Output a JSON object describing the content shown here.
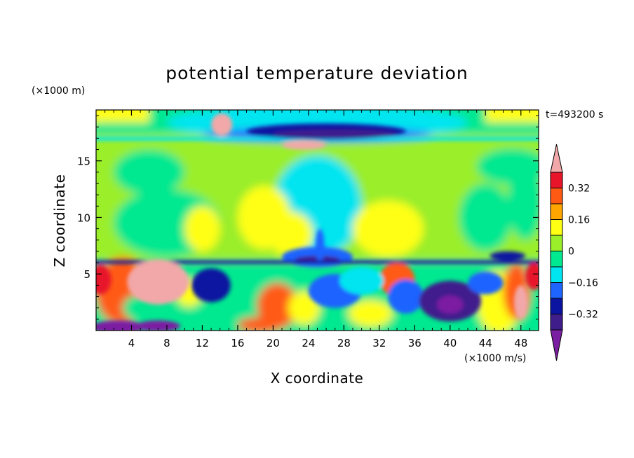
{
  "chart_data": {
    "type": "heatmap",
    "title": "potential temperature deviation",
    "xlabel": "X coordinate",
    "ylabel": "Z coordinate",
    "x_unit": "(×1000 m/s)",
    "y_unit": "(×1000 m)",
    "time_label": "t=493200 s",
    "xlim": [
      0,
      50
    ],
    "ylim": [
      0,
      19.5
    ],
    "x_ticks": [
      4,
      8,
      12,
      16,
      20,
      24,
      28,
      32,
      36,
      40,
      44,
      48
    ],
    "x_tick_labels": [
      "4",
      "8",
      "12",
      "16",
      "20",
      "24",
      "28",
      "32",
      "36",
      "40",
      "44",
      "48"
    ],
    "y_ticks": [
      5,
      10,
      15
    ],
    "y_tick_labels": [
      "5",
      "10",
      "15"
    ],
    "colorbar": {
      "levels": [
        -0.4,
        -0.32,
        -0.24,
        -0.16,
        -0.08,
        0,
        0.08,
        0.16,
        0.24,
        0.32,
        0.4
      ],
      "tick_values": [
        -0.32,
        -0.16,
        0,
        0.16,
        0.32
      ],
      "tick_labels": [
        "−0.32",
        "−0.16",
        "0",
        "0.16",
        "0.32"
      ],
      "colors": [
        "#7b1fa2",
        "#3f1e8c",
        "#0a14a0",
        "#1e64ff",
        "#00e5f0",
        "#00e890",
        "#9aee2a",
        "#ffff14",
        "#ffa500",
        "#ff5a14",
        "#e8142a",
        "#f2a8a8"
      ]
    }
  }
}
